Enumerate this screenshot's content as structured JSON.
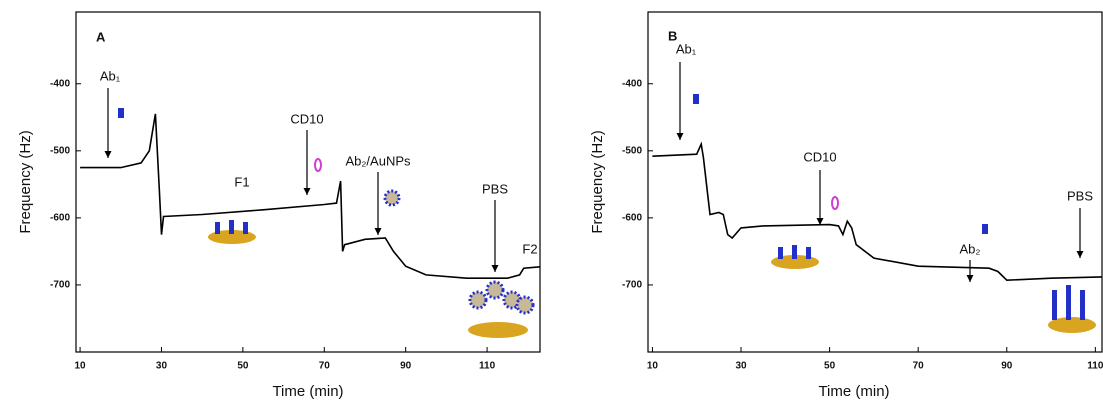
{
  "chart_data": [
    {
      "type": "line",
      "title": "A",
      "x_label": "Time (min)",
      "y_label": "Frequency (Hz)",
      "color": "#000000",
      "x": [
        10,
        20,
        25,
        27,
        28.5,
        29.5,
        30,
        30.5,
        40,
        55,
        70,
        73,
        74,
        74.5,
        75,
        80,
        85,
        87,
        90,
        95,
        105,
        115,
        118,
        119,
        123
      ],
      "values": [
        -525,
        -525,
        -518,
        -500,
        -445,
        -560,
        -625,
        -598,
        -595,
        -588,
        -580,
        -578,
        -545,
        -650,
        -640,
        -632,
        -630,
        -650,
        -672,
        -685,
        -690,
        -690,
        -685,
        -675,
        -673
      ],
      "xlim": [
        9,
        123
      ],
      "ylim": [
        -800,
        -293
      ],
      "xticks": [
        10,
        30,
        50,
        70,
        90,
        110
      ],
      "yticks": [
        -400,
        -500,
        -600,
        -700
      ],
      "annotations": [
        "Ab₁",
        "CD10",
        "F1",
        "Ab₂/AuNPs",
        "PBS",
        "F2"
      ]
    },
    {
      "type": "line",
      "title": "B",
      "x_label": "Time (min)",
      "y_label": "Frequency (Hz)",
      "color": "#000000",
      "x": [
        10,
        20,
        21,
        21.5,
        23,
        25,
        26,
        27,
        28,
        30,
        35,
        50,
        52,
        53,
        54,
        55,
        56,
        60,
        70,
        86,
        88,
        90,
        100,
        111.5
      ],
      "values": [
        -508,
        -505,
        -490,
        -510,
        -595,
        -592,
        -595,
        -625,
        -630,
        -615,
        -612,
        -610,
        -612,
        -625,
        -605,
        -615,
        -640,
        -660,
        -672,
        -675,
        -680,
        -693,
        -690,
        -688
      ],
      "xlim": [
        9,
        111.5
      ],
      "ylim": [
        -800,
        -293
      ],
      "xticks": [
        10,
        30,
        50,
        70,
        90,
        110
      ],
      "yticks": [
        -400,
        -500,
        -600,
        -700
      ],
      "annotations": [
        "Ab₁",
        "CD10",
        "Ab₂",
        "PBS"
      ]
    }
  ]
}
